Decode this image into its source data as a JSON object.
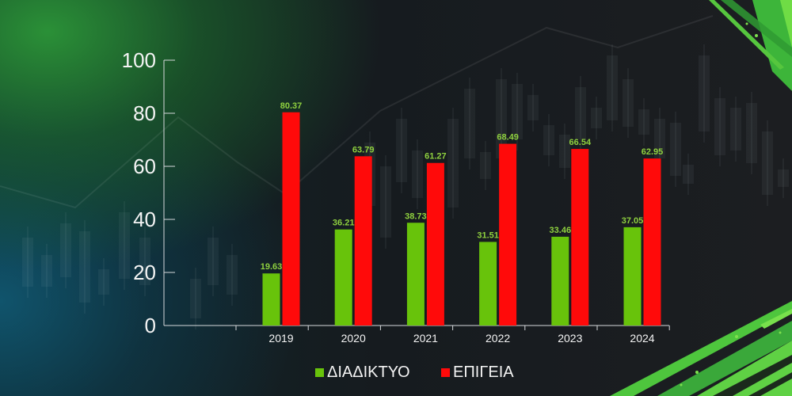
{
  "chart_data": {
    "type": "bar",
    "categories": [
      "2019",
      "2020",
      "2021",
      "2022",
      "2023",
      "2024"
    ],
    "series": [
      {
        "name": "ΔΙΑΔΙΚΤΥΟ",
        "values": [
          19.63,
          36.21,
          38.73,
          31.51,
          33.46,
          37.05
        ],
        "color": "#68c30b"
      },
      {
        "name": "ΕΠΙΓΕΙΑ",
        "values": [
          80.37,
          63.79,
          61.27,
          68.49,
          66.54,
          62.95
        ],
        "color": "#ff0a0a"
      }
    ],
    "ylim": [
      0,
      100
    ],
    "yticks": [
      0,
      20,
      40,
      60,
      80,
      100
    ],
    "grid": false,
    "legend": "bottom",
    "data_labels": true,
    "data_label_color": "#8fd13f",
    "axis_color": "#d6d9dc",
    "background": {
      "base": "#15191d",
      "glow_top_left": "#2c9638",
      "glow_bottom_left": "#105c78",
      "accent_brush": "#3db53a"
    }
  }
}
